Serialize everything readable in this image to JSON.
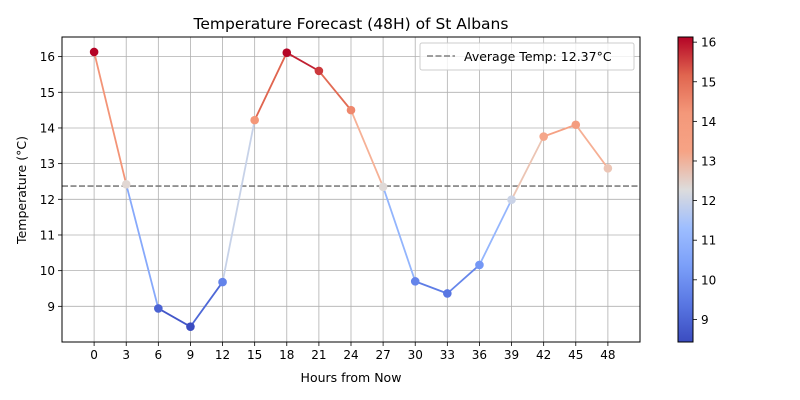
{
  "chart_data": {
    "type": "line",
    "title": "Temperature Forecast (48H) of St Albans",
    "xlabel": "Hours from Now",
    "ylabel": "Temperature (°C)",
    "x": [
      0,
      3,
      6,
      9,
      12,
      15,
      18,
      21,
      24,
      27,
      30,
      33,
      36,
      39,
      42,
      45,
      48
    ],
    "values": [
      16.13,
      12.42,
      8.94,
      8.43,
      9.68,
      14.22,
      16.11,
      15.6,
      14.5,
      12.35,
      9.7,
      9.36,
      10.16,
      11.99,
      13.76,
      14.09,
      12.87
    ],
    "xlim": [
      -3,
      51
    ],
    "ylim": [
      8.0,
      16.55
    ],
    "x_ticks": [
      "0",
      "3",
      "6",
      "9",
      "12",
      "15",
      "18",
      "21",
      "24",
      "27",
      "30",
      "33",
      "36",
      "39",
      "42",
      "45",
      "48"
    ],
    "y_ticks": [
      "9",
      "10",
      "11",
      "12",
      "13",
      "14",
      "15",
      "16"
    ],
    "grid": true,
    "colormap": "coolwarm",
    "color_range": [
      8.43,
      16.13
    ],
    "colorbar_ticks": [
      "9",
      "10",
      "11",
      "12",
      "13",
      "14",
      "15",
      "16"
    ],
    "average_line": {
      "value": 12.37,
      "label": "Average Temp: 12.37°C",
      "color": "#808080"
    },
    "legend_position": "top-right"
  }
}
